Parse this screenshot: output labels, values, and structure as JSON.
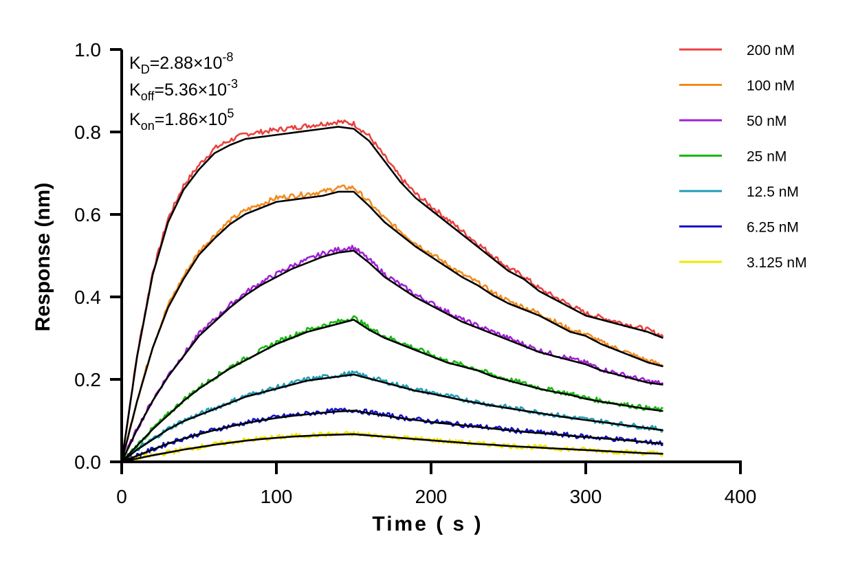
{
  "chart_data": {
    "type": "line",
    "title": "",
    "xlabel": "Time ( s )",
    "ylabel": "Response (nm)",
    "xlim": [
      0,
      400
    ],
    "ylim": [
      0,
      1.0
    ],
    "x_ticks": [
      0,
      100,
      200,
      300,
      400
    ],
    "x_tick_labels": [
      "0",
      "100",
      "200",
      "300",
      "400"
    ],
    "y_ticks": [
      0,
      0.2,
      0.4,
      0.6,
      0.8,
      1.0
    ],
    "y_tick_labels": [
      "0.0",
      "0.2",
      "0.4",
      "0.6",
      "0.8",
      "1.0"
    ],
    "grid": false,
    "legend_position": "top-right",
    "association_end_s": 150,
    "end_time_s": 350,
    "annotations": {
      "kd": {
        "label": "K",
        "sub": "D",
        "eq": "=2.88×10",
        "exp": "-8"
      },
      "koff": {
        "label": "K",
        "sub": "off",
        "eq": "=5.36×10",
        "exp": "-3"
      },
      "kon": {
        "label": "K",
        "sub": "on",
        "eq": "=1.86×10",
        "exp": "5"
      }
    },
    "fit_color": "#000000",
    "series": [
      {
        "name": "200 nM",
        "color": "#e8423f",
        "points": [
          [
            0,
            0
          ],
          [
            10,
            0.26
          ],
          [
            20,
            0.46
          ],
          [
            30,
            0.59
          ],
          [
            40,
            0.67
          ],
          [
            50,
            0.72
          ],
          [
            60,
            0.76
          ],
          [
            70,
            0.78
          ],
          [
            80,
            0.795
          ],
          [
            90,
            0.8
          ],
          [
            100,
            0.805
          ],
          [
            110,
            0.81
          ],
          [
            120,
            0.815
          ],
          [
            130,
            0.82
          ],
          [
            140,
            0.825
          ],
          [
            150,
            0.82
          ],
          [
            160,
            0.79
          ],
          [
            170,
            0.74
          ],
          [
            180,
            0.69
          ],
          [
            190,
            0.65
          ],
          [
            200,
            0.62
          ],
          [
            210,
            0.59
          ],
          [
            220,
            0.56
          ],
          [
            230,
            0.53
          ],
          [
            240,
            0.5
          ],
          [
            250,
            0.47
          ],
          [
            260,
            0.45
          ],
          [
            270,
            0.42
          ],
          [
            280,
            0.4
          ],
          [
            290,
            0.38
          ],
          [
            300,
            0.36
          ],
          [
            310,
            0.35
          ],
          [
            320,
            0.34
          ],
          [
            330,
            0.33
          ],
          [
            340,
            0.32
          ],
          [
            350,
            0.305
          ]
        ]
      },
      {
        "name": "100 nM",
        "color": "#f28a1e",
        "points": [
          [
            0,
            0
          ],
          [
            10,
            0.15
          ],
          [
            20,
            0.28
          ],
          [
            30,
            0.38
          ],
          [
            40,
            0.45
          ],
          [
            50,
            0.51
          ],
          [
            60,
            0.55
          ],
          [
            70,
            0.585
          ],
          [
            80,
            0.61
          ],
          [
            90,
            0.625
          ],
          [
            100,
            0.64
          ],
          [
            110,
            0.645
          ],
          [
            120,
            0.65
          ],
          [
            130,
            0.655
          ],
          [
            140,
            0.665
          ],
          [
            150,
            0.665
          ],
          [
            160,
            0.63
          ],
          [
            170,
            0.59
          ],
          [
            180,
            0.56
          ],
          [
            190,
            0.53
          ],
          [
            200,
            0.505
          ],
          [
            210,
            0.48
          ],
          [
            220,
            0.455
          ],
          [
            230,
            0.435
          ],
          [
            240,
            0.41
          ],
          [
            250,
            0.39
          ],
          [
            260,
            0.375
          ],
          [
            270,
            0.36
          ],
          [
            280,
            0.34
          ],
          [
            290,
            0.32
          ],
          [
            300,
            0.31
          ],
          [
            310,
            0.29
          ],
          [
            320,
            0.275
          ],
          [
            330,
            0.26
          ],
          [
            340,
            0.245
          ],
          [
            350,
            0.235
          ]
        ]
      },
      {
        "name": "50 nM",
        "color": "#a020d6",
        "points": [
          [
            0,
            0
          ],
          [
            10,
            0.08
          ],
          [
            20,
            0.15
          ],
          [
            30,
            0.21
          ],
          [
            40,
            0.26
          ],
          [
            50,
            0.31
          ],
          [
            60,
            0.345
          ],
          [
            70,
            0.38
          ],
          [
            80,
            0.41
          ],
          [
            90,
            0.435
          ],
          [
            100,
            0.455
          ],
          [
            110,
            0.475
          ],
          [
            120,
            0.49
          ],
          [
            130,
            0.505
          ],
          [
            140,
            0.515
          ],
          [
            150,
            0.52
          ],
          [
            160,
            0.49
          ],
          [
            170,
            0.455
          ],
          [
            180,
            0.43
          ],
          [
            190,
            0.405
          ],
          [
            200,
            0.385
          ],
          [
            210,
            0.365
          ],
          [
            220,
            0.345
          ],
          [
            230,
            0.33
          ],
          [
            240,
            0.315
          ],
          [
            250,
            0.3
          ],
          [
            260,
            0.285
          ],
          [
            270,
            0.27
          ],
          [
            280,
            0.26
          ],
          [
            290,
            0.25
          ],
          [
            300,
            0.24
          ],
          [
            310,
            0.225
          ],
          [
            320,
            0.215
          ],
          [
            330,
            0.205
          ],
          [
            340,
            0.195
          ],
          [
            350,
            0.19
          ]
        ]
      },
      {
        "name": "25 nM",
        "color": "#17b80e",
        "points": [
          [
            0,
            0
          ],
          [
            10,
            0.04
          ],
          [
            20,
            0.08
          ],
          [
            30,
            0.115
          ],
          [
            40,
            0.15
          ],
          [
            50,
            0.18
          ],
          [
            60,
            0.205
          ],
          [
            70,
            0.23
          ],
          [
            80,
            0.25
          ],
          [
            90,
            0.27
          ],
          [
            100,
            0.29
          ],
          [
            110,
            0.305
          ],
          [
            120,
            0.32
          ],
          [
            130,
            0.33
          ],
          [
            140,
            0.34
          ],
          [
            150,
            0.35
          ],
          [
            160,
            0.325
          ],
          [
            170,
            0.305
          ],
          [
            180,
            0.29
          ],
          [
            190,
            0.275
          ],
          [
            200,
            0.26
          ],
          [
            210,
            0.245
          ],
          [
            220,
            0.235
          ],
          [
            230,
            0.225
          ],
          [
            240,
            0.21
          ],
          [
            250,
            0.2
          ],
          [
            260,
            0.19
          ],
          [
            270,
            0.18
          ],
          [
            280,
            0.172
          ],
          [
            290,
            0.165
          ],
          [
            300,
            0.155
          ],
          [
            310,
            0.148
          ],
          [
            320,
            0.142
          ],
          [
            330,
            0.136
          ],
          [
            340,
            0.13
          ],
          [
            350,
            0.125
          ]
        ]
      },
      {
        "name": "12.5 nM",
        "color": "#1f9db5",
        "points": [
          [
            0,
            0
          ],
          [
            10,
            0.03
          ],
          [
            20,
            0.055
          ],
          [
            30,
            0.08
          ],
          [
            40,
            0.1
          ],
          [
            50,
            0.115
          ],
          [
            60,
            0.13
          ],
          [
            70,
            0.145
          ],
          [
            80,
            0.16
          ],
          [
            90,
            0.17
          ],
          [
            100,
            0.18
          ],
          [
            110,
            0.19
          ],
          [
            120,
            0.2
          ],
          [
            130,
            0.205
          ],
          [
            140,
            0.21
          ],
          [
            150,
            0.215
          ],
          [
            160,
            0.205
          ],
          [
            170,
            0.195
          ],
          [
            180,
            0.185
          ],
          [
            190,
            0.175
          ],
          [
            200,
            0.168
          ],
          [
            210,
            0.16
          ],
          [
            220,
            0.152
          ],
          [
            230,
            0.145
          ],
          [
            240,
            0.138
          ],
          [
            250,
            0.132
          ],
          [
            260,
            0.126
          ],
          [
            270,
            0.12
          ],
          [
            280,
            0.114
          ],
          [
            290,
            0.108
          ],
          [
            300,
            0.103
          ],
          [
            310,
            0.098
          ],
          [
            320,
            0.093
          ],
          [
            330,
            0.088
          ],
          [
            340,
            0.083
          ],
          [
            350,
            0.078
          ]
        ]
      },
      {
        "name": "6.25 nM",
        "color": "#1010cc",
        "points": [
          [
            0,
            0
          ],
          [
            10,
            0.015
          ],
          [
            20,
            0.03
          ],
          [
            30,
            0.045
          ],
          [
            40,
            0.057
          ],
          [
            50,
            0.068
          ],
          [
            60,
            0.078
          ],
          [
            70,
            0.087
          ],
          [
            80,
            0.095
          ],
          [
            90,
            0.102
          ],
          [
            100,
            0.108
          ],
          [
            110,
            0.113
          ],
          [
            120,
            0.117
          ],
          [
            130,
            0.121
          ],
          [
            140,
            0.124
          ],
          [
            150,
            0.126
          ],
          [
            160,
            0.12
          ],
          [
            170,
            0.114
          ],
          [
            180,
            0.108
          ],
          [
            190,
            0.103
          ],
          [
            200,
            0.098
          ],
          [
            210,
            0.094
          ],
          [
            220,
            0.09
          ],
          [
            230,
            0.086
          ],
          [
            240,
            0.082
          ],
          [
            250,
            0.078
          ],
          [
            260,
            0.074
          ],
          [
            270,
            0.071
          ],
          [
            280,
            0.068
          ],
          [
            290,
            0.064
          ],
          [
            300,
            0.061
          ],
          [
            310,
            0.058
          ],
          [
            320,
            0.055
          ],
          [
            330,
            0.052
          ],
          [
            340,
            0.048
          ],
          [
            350,
            0.045
          ]
        ]
      },
      {
        "name": "3.125 nM",
        "color": "#f2e600",
        "points": [
          [
            0,
            0
          ],
          [
            10,
            0.008
          ],
          [
            20,
            0.016
          ],
          [
            30,
            0.023
          ],
          [
            40,
            0.03
          ],
          [
            50,
            0.036
          ],
          [
            60,
            0.042
          ],
          [
            70,
            0.047
          ],
          [
            80,
            0.052
          ],
          [
            90,
            0.056
          ],
          [
            100,
            0.059
          ],
          [
            110,
            0.062
          ],
          [
            120,
            0.064
          ],
          [
            130,
            0.066
          ],
          [
            140,
            0.067
          ],
          [
            150,
            0.068
          ],
          [
            160,
            0.065
          ],
          [
            170,
            0.062
          ],
          [
            180,
            0.059
          ],
          [
            190,
            0.056
          ],
          [
            200,
            0.053
          ],
          [
            210,
            0.05
          ],
          [
            220,
            0.047
          ],
          [
            230,
            0.044
          ],
          [
            240,
            0.042
          ],
          [
            250,
            0.039
          ],
          [
            260,
            0.037
          ],
          [
            270,
            0.035
          ],
          [
            280,
            0.033
          ],
          [
            290,
            0.031
          ],
          [
            300,
            0.029
          ],
          [
            310,
            0.027
          ],
          [
            320,
            0.025
          ],
          [
            330,
            0.023
          ],
          [
            340,
            0.021
          ],
          [
            350,
            0.02
          ]
        ]
      }
    ]
  }
}
